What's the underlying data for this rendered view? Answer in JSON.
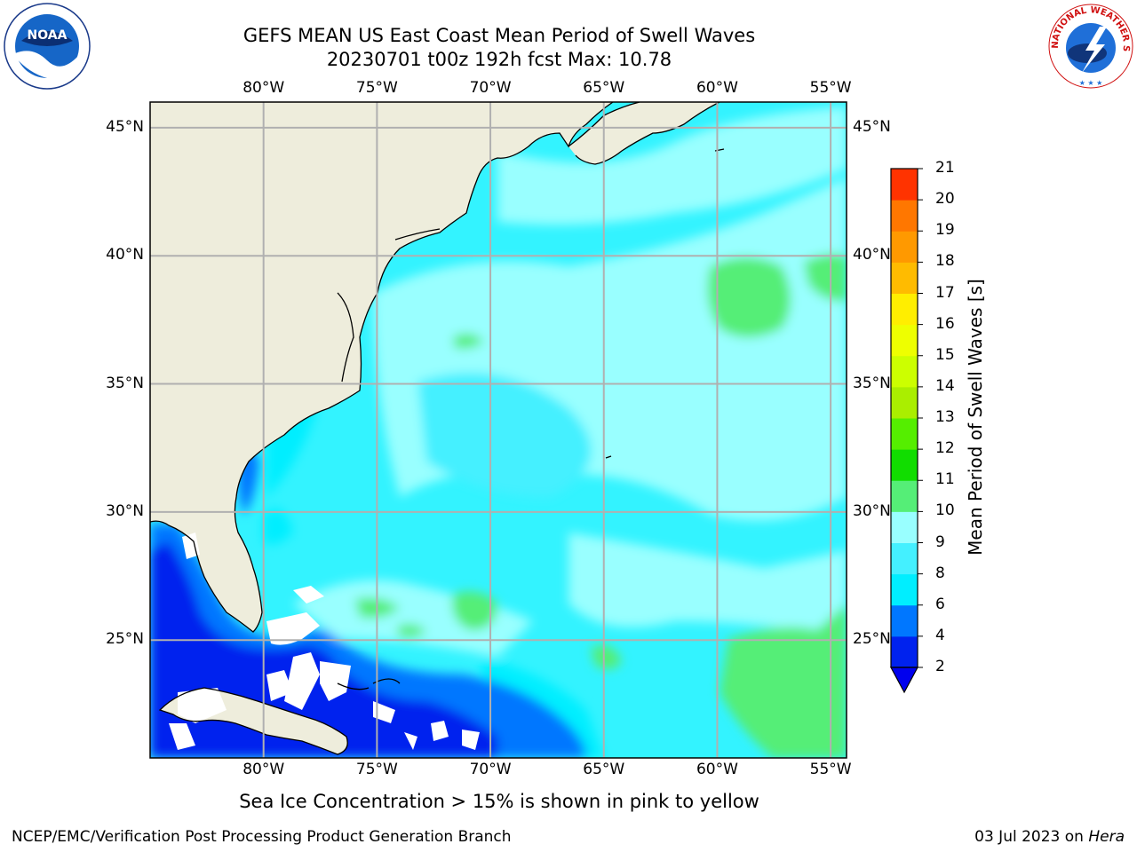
{
  "title": {
    "line1": "GEFS MEAN US East Coast Mean Period of Swell Waves",
    "line2": "20230701 t00z 192h fcst   Max: 10.78"
  },
  "map": {
    "lon_labels": [
      "80°W",
      "75°W",
      "70°W",
      "65°W",
      "60°W",
      "55°W"
    ],
    "lat_labels": [
      "45°N",
      "40°N",
      "35°N",
      "30°N",
      "25°N"
    ],
    "lon_range": [
      -85,
      -54.3
    ],
    "lat_range": [
      20.4,
      46
    ]
  },
  "colorbar": {
    "label": "Mean Period of Swell Waves [s]",
    "ticks": [
      "2",
      "4",
      "6",
      "8",
      "9",
      "10",
      "11",
      "12",
      "13",
      "14",
      "15",
      "16",
      "17",
      "18",
      "19",
      "20",
      "21"
    ],
    "colors": [
      "#0022ee",
      "#0077ff",
      "#00eeff",
      "#44f0ff",
      "#99ffff",
      "#55ee77",
      "#11dd00",
      "#55ee00",
      "#aaee00",
      "#ccff00",
      "#eeff00",
      "#ffee00",
      "#ffbb00",
      "#ff9900",
      "#ff7700",
      "#ff3300",
      "#ff0000"
    ],
    "extend_color": "#0000ee"
  },
  "colors": {
    "land": "#eeeddc",
    "ocean_base": "#33f3ff",
    "grid": "#b0b0b0"
  },
  "subtitle": "Sea Ice Concentration > 15% is shown in pink to yellow",
  "footer": {
    "left": "NCEP/EMC/Verification Post Processing Product Generation Branch",
    "right_prefix": "03 Jul 2023 on ",
    "right_machine": "Hera"
  },
  "logos": {
    "noaa_text": "NOAA",
    "nws_text": "NATIONAL WEATHER SERVICE"
  }
}
